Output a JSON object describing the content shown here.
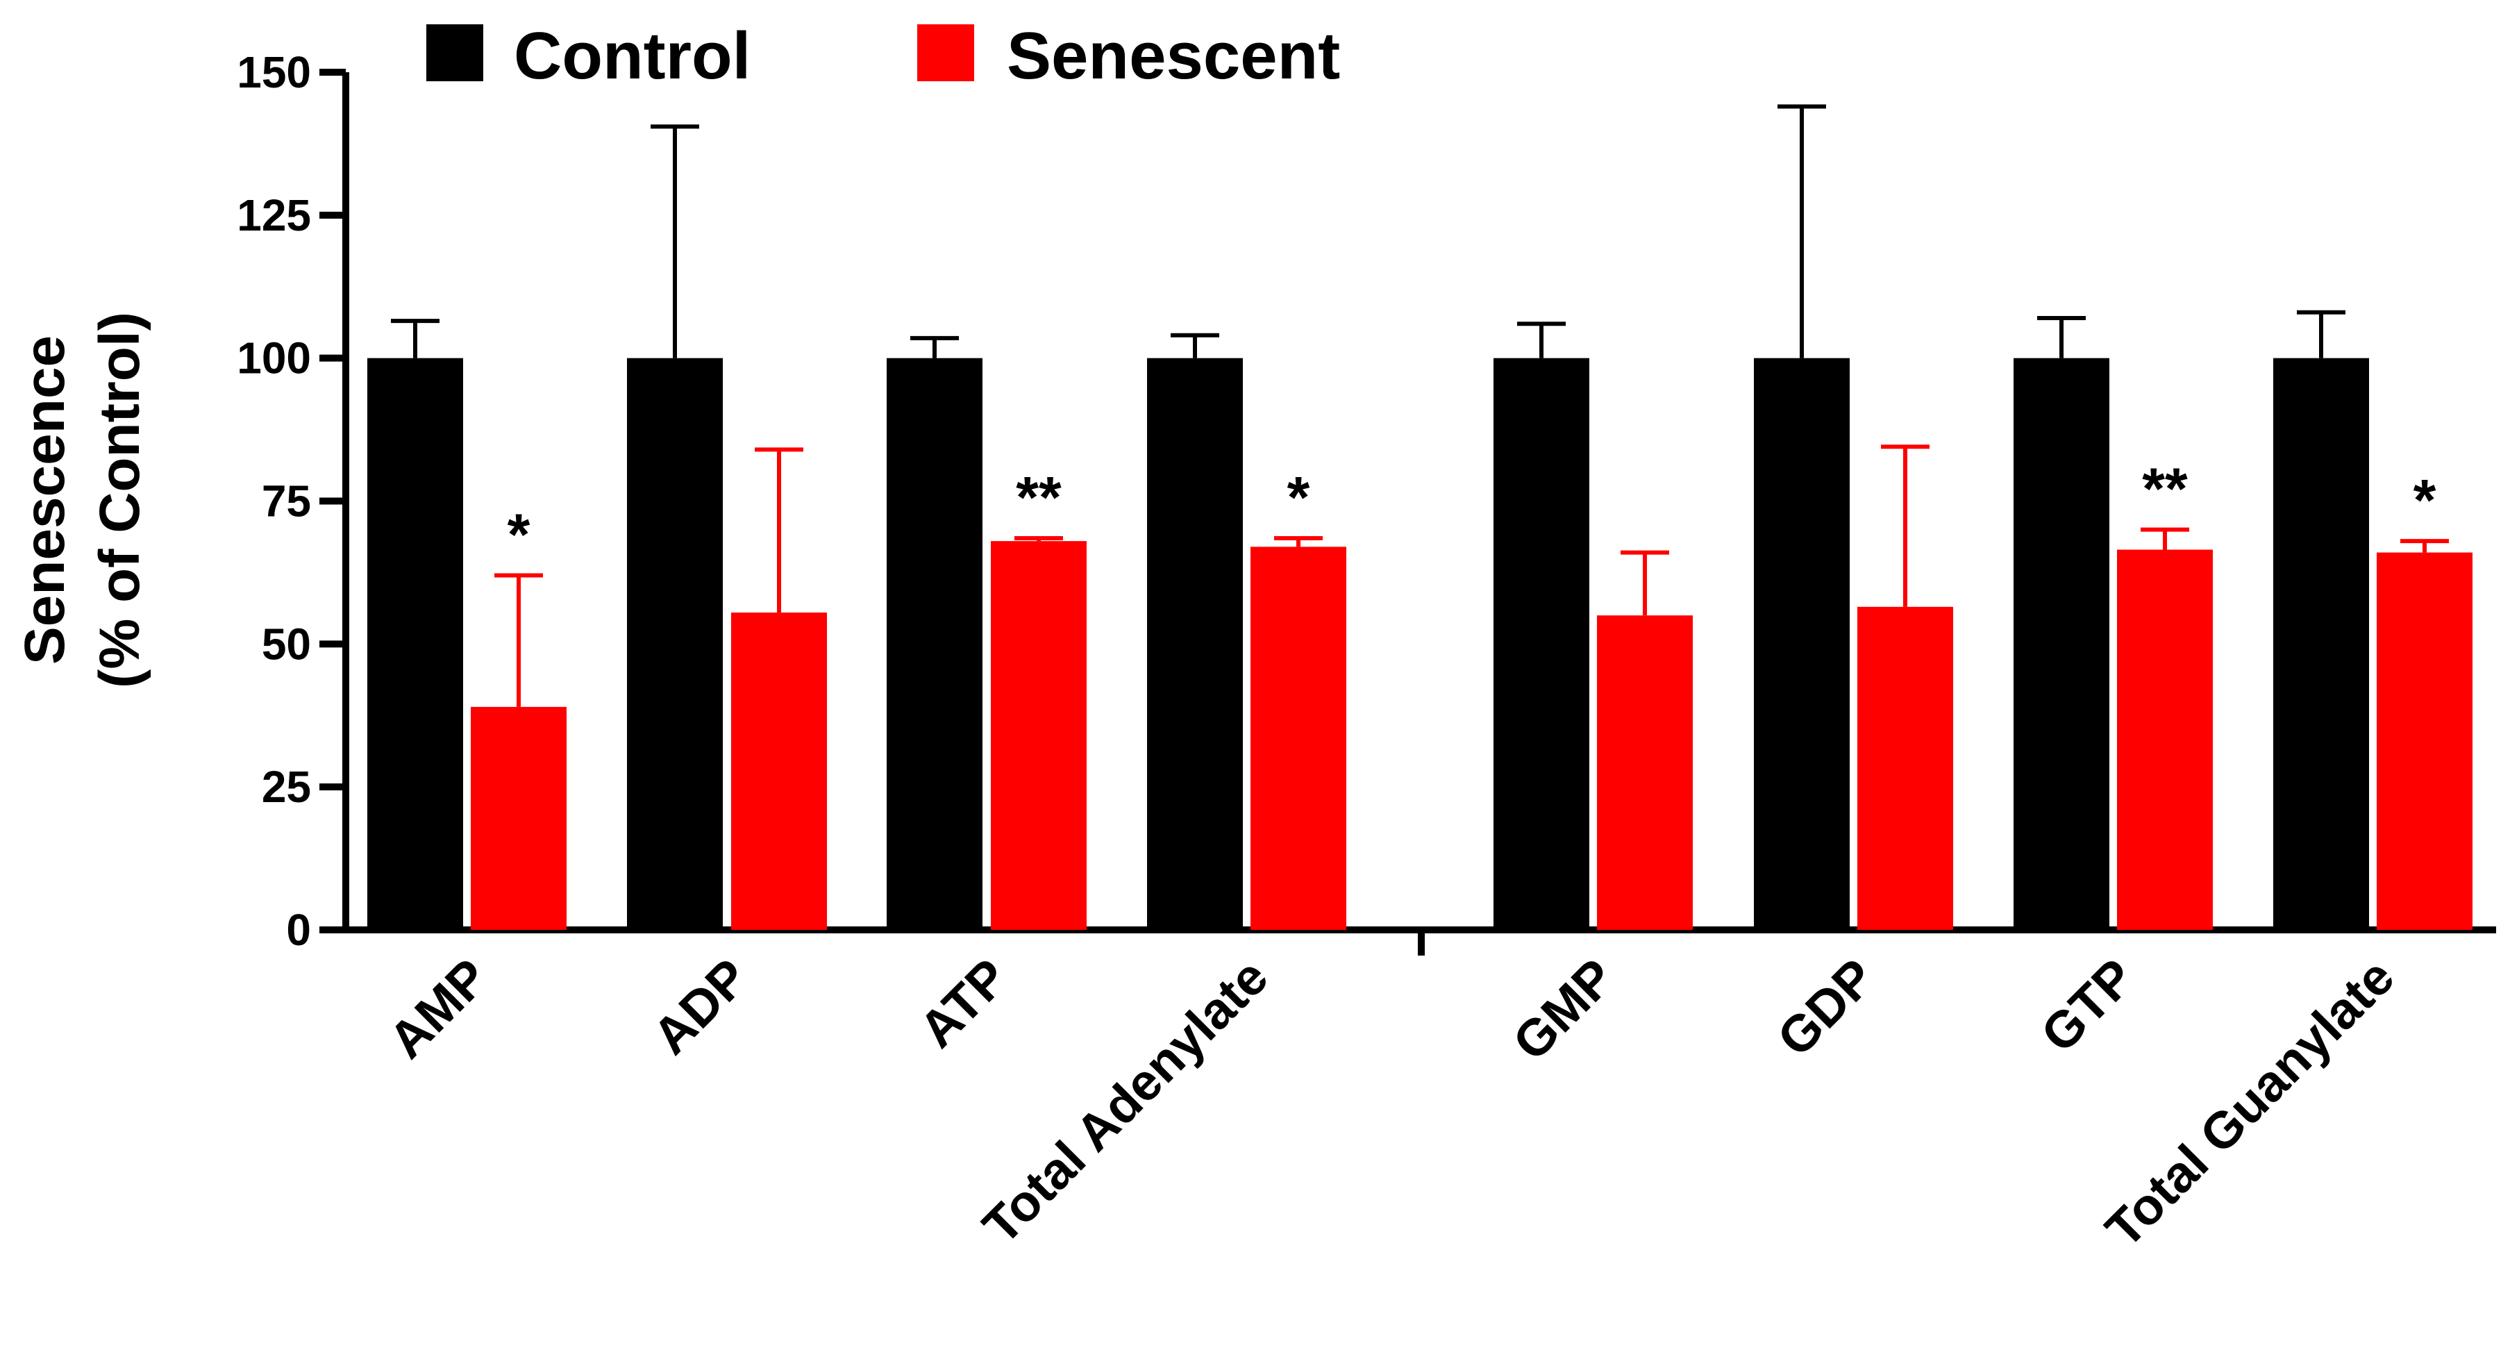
{
  "chart_data": {
    "type": "bar",
    "title": "",
    "xlabel": "",
    "ylabel_lines": [
      "Senescence",
      "(% of Control)"
    ],
    "ylim": [
      0,
      150
    ],
    "yticks": [
      0,
      25,
      50,
      75,
      100,
      125,
      150
    ],
    "categories": [
      "AMP",
      "ADP",
      "ATP",
      "Total Adenylate",
      "GMP",
      "GDP",
      "GTP",
      "Total Guanylate"
    ],
    "series": [
      {
        "name": "Control",
        "color": "#000000",
        "values": [
          100,
          100,
          100,
          100,
          100,
          100,
          100,
          100
        ],
        "errors": [
          6.5,
          40.5,
          3.5,
          4,
          6,
          44,
          7,
          8
        ]
      },
      {
        "name": "Senescent",
        "color": "#ff0000",
        "values": [
          39,
          55.5,
          68,
          67,
          55,
          56.5,
          66.5,
          66
        ],
        "errors": [
          23,
          28.5,
          0.5,
          1.5,
          11,
          28,
          3.5,
          2
        ]
      }
    ],
    "significance": [
      "*",
      "",
      "**",
      "*",
      "",
      "",
      "**",
      "*"
    ],
    "legend": {
      "position": "top",
      "entries": [
        "Control",
        "Senescent"
      ]
    }
  }
}
